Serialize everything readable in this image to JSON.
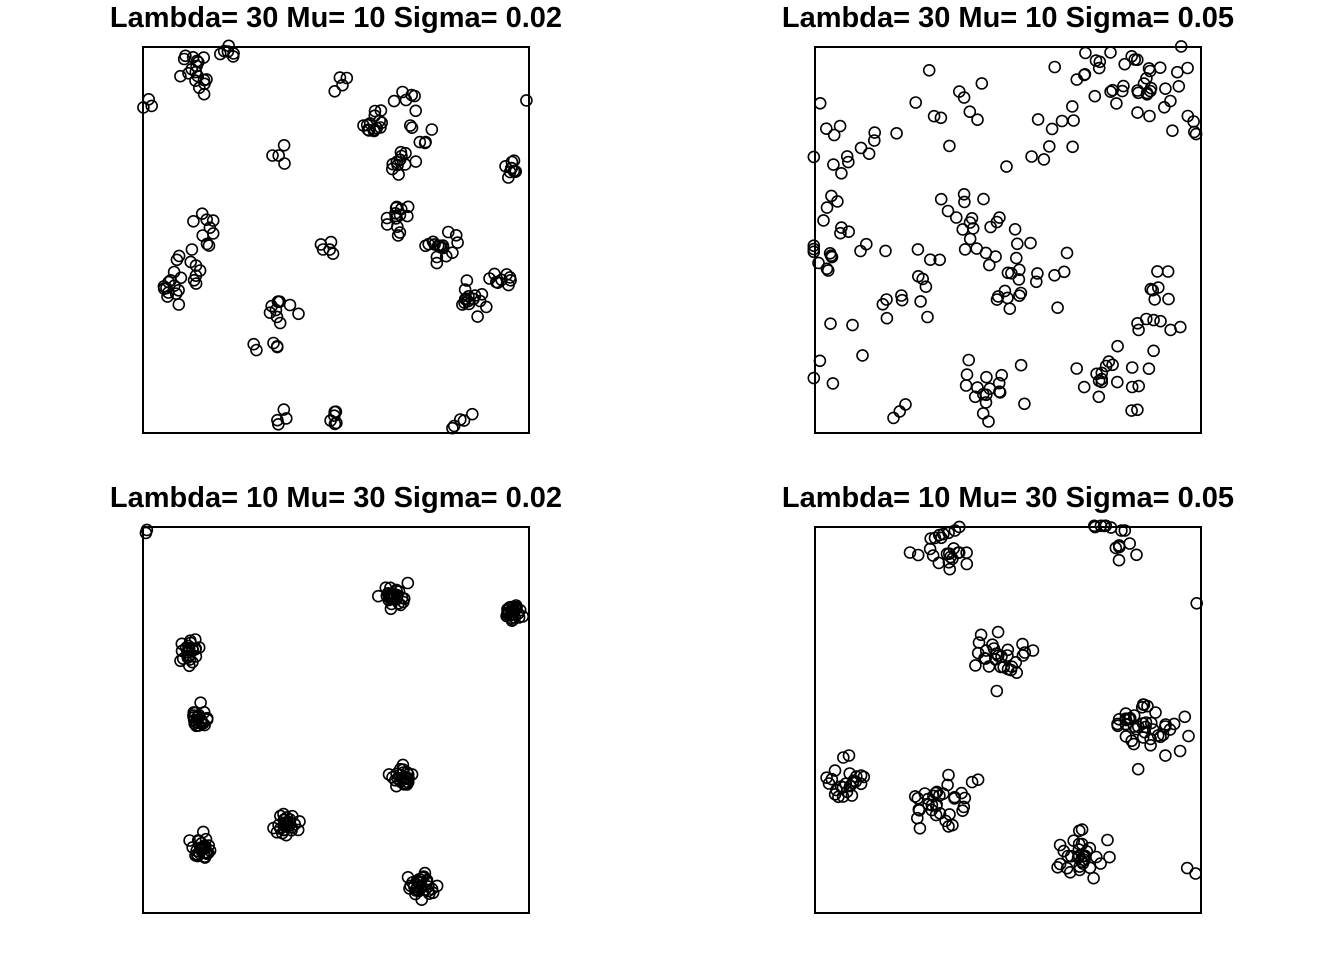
{
  "chart_data": [
    {
      "type": "scatter",
      "title": "Lambda= 30 Mu= 10 Sigma= 0.02",
      "xlim": [
        0,
        1
      ],
      "ylim": [
        0,
        1
      ],
      "axes": false,
      "grid": false,
      "clusters": [
        {
          "c": [
            0.12,
            0.96
          ],
          "s": 0.02,
          "n": 10
        },
        {
          "c": [
            0.15,
            0.9
          ],
          "s": 0.02,
          "n": 8
        },
        {
          "c": [
            0.22,
            0.99
          ],
          "s": 0.015,
          "n": 6
        },
        {
          "c": [
            0.01,
            0.84
          ],
          "s": 0.01,
          "n": 3
        },
        {
          "c": [
            0.51,
            0.9
          ],
          "s": 0.015,
          "n": 4
        },
        {
          "c": [
            0.6,
            0.8
          ],
          "s": 0.02,
          "n": 14
        },
        {
          "c": [
            0.68,
            0.88
          ],
          "s": 0.02,
          "n": 6
        },
        {
          "c": [
            0.72,
            0.78
          ],
          "s": 0.02,
          "n": 7
        },
        {
          "c": [
            0.66,
            0.7
          ],
          "s": 0.02,
          "n": 10
        },
        {
          "c": [
            0.96,
            0.69
          ],
          "s": 0.015,
          "n": 10
        },
        {
          "c": [
            0.36,
            0.73
          ],
          "s": 0.012,
          "n": 4
        },
        {
          "c": [
            0.66,
            0.56
          ],
          "s": 0.02,
          "n": 14
        },
        {
          "c": [
            0.78,
            0.48
          ],
          "s": 0.02,
          "n": 16
        },
        {
          "c": [
            0.48,
            0.47
          ],
          "s": 0.012,
          "n": 5
        },
        {
          "c": [
            0.93,
            0.4
          ],
          "s": 0.02,
          "n": 10
        },
        {
          "c": [
            0.85,
            0.34
          ],
          "s": 0.02,
          "n": 14
        },
        {
          "c": [
            0.16,
            0.54
          ],
          "s": 0.02,
          "n": 9
        },
        {
          "c": [
            0.12,
            0.45
          ],
          "s": 0.02,
          "n": 10
        },
        {
          "c": [
            0.06,
            0.37
          ],
          "s": 0.02,
          "n": 12
        },
        {
          "c": [
            0.36,
            0.31
          ],
          "s": 0.02,
          "n": 10
        },
        {
          "c": [
            0.32,
            0.23
          ],
          "s": 0.015,
          "n": 5
        },
        {
          "c": [
            0.36,
            0.03
          ],
          "s": 0.012,
          "n": 4
        },
        {
          "c": [
            0.49,
            0.03
          ],
          "s": 0.012,
          "n": 6
        },
        {
          "c": [
            0.82,
            0.04
          ],
          "s": 0.015,
          "n": 5
        },
        {
          "c": [
            0.99,
            0.86
          ],
          "s": 0.003,
          "n": 1
        }
      ]
    },
    {
      "type": "scatter",
      "title": "Lambda= 30 Mu= 10 Sigma= 0.05",
      "xlim": [
        0,
        1
      ],
      "ylim": [
        0,
        1
      ],
      "axes": false,
      "grid": false,
      "clusters": [
        {
          "c": [
            0.85,
            0.92
          ],
          "s": 0.05,
          "n": 30
        },
        {
          "c": [
            0.7,
            0.9
          ],
          "s": 0.05,
          "n": 12
        },
        {
          "c": [
            0.38,
            0.86
          ],
          "s": 0.05,
          "n": 10
        },
        {
          "c": [
            0.1,
            0.74
          ],
          "s": 0.05,
          "n": 14
        },
        {
          "c": [
            0.05,
            0.5
          ],
          "s": 0.05,
          "n": 18
        },
        {
          "c": [
            0.4,
            0.55
          ],
          "s": 0.05,
          "n": 18
        },
        {
          "c": [
            0.53,
            0.4
          ],
          "s": 0.05,
          "n": 22
        },
        {
          "c": [
            0.25,
            0.38
          ],
          "s": 0.05,
          "n": 14
        },
        {
          "c": [
            0.45,
            0.12
          ],
          "s": 0.05,
          "n": 18
        },
        {
          "c": [
            0.78,
            0.14
          ],
          "s": 0.05,
          "n": 20
        },
        {
          "c": [
            0.88,
            0.34
          ],
          "s": 0.05,
          "n": 10
        },
        {
          "c": [
            0.98,
            0.8
          ],
          "s": 0.03,
          "n": 5
        },
        {
          "c": [
            0.05,
            0.2
          ],
          "s": 0.04,
          "n": 6
        },
        {
          "c": [
            0.58,
            0.76
          ],
          "s": 0.05,
          "n": 7
        },
        {
          "c": [
            0.96,
            0.28
          ],
          "s": 0.04,
          "n": 4
        },
        {
          "c": [
            0.2,
            0.08
          ],
          "s": 0.03,
          "n": 3
        }
      ]
    },
    {
      "type": "scatter",
      "title": "Lambda= 10 Mu= 30 Sigma= 0.02",
      "xlim": [
        0,
        1
      ],
      "ylim": [
        0,
        1
      ],
      "axes": false,
      "grid": false,
      "clusters": [
        {
          "c": [
            0.65,
            0.82
          ],
          "s": 0.015,
          "n": 30
        },
        {
          "c": [
            0.96,
            0.78
          ],
          "s": 0.012,
          "n": 30
        },
        {
          "c": [
            0.12,
            0.68
          ],
          "s": 0.015,
          "n": 24
        },
        {
          "c": [
            0.15,
            0.5
          ],
          "s": 0.015,
          "n": 24
        },
        {
          "c": [
            0.67,
            0.35
          ],
          "s": 0.015,
          "n": 26
        },
        {
          "c": [
            0.37,
            0.23
          ],
          "s": 0.015,
          "n": 28
        },
        {
          "c": [
            0.15,
            0.17
          ],
          "s": 0.015,
          "n": 28
        },
        {
          "c": [
            0.72,
            0.07
          ],
          "s": 0.015,
          "n": 30
        },
        {
          "c": [
            0.01,
            0.99
          ],
          "s": 0.004,
          "n": 2
        }
      ]
    },
    {
      "type": "scatter",
      "title": "Lambda= 10 Mu= 30 Sigma= 0.05",
      "xlim": [
        0,
        1
      ],
      "ylim": [
        0,
        1
      ],
      "axes": false,
      "grid": false,
      "clusters": [
        {
          "c": [
            0.34,
            0.95
          ],
          "s": 0.035,
          "n": 24
        },
        {
          "c": [
            0.77,
            0.97
          ],
          "s": 0.03,
          "n": 14
        },
        {
          "c": [
            0.48,
            0.66
          ],
          "s": 0.035,
          "n": 30
        },
        {
          "c": [
            0.86,
            0.48
          ],
          "s": 0.04,
          "n": 44
        },
        {
          "c": [
            0.07,
            0.34
          ],
          "s": 0.035,
          "n": 24
        },
        {
          "c": [
            0.32,
            0.28
          ],
          "s": 0.035,
          "n": 34
        },
        {
          "c": [
            0.7,
            0.15
          ],
          "s": 0.035,
          "n": 32
        },
        {
          "c": [
            0.99,
            0.8
          ],
          "s": 0.003,
          "n": 1
        },
        {
          "c": [
            0.98,
            0.1
          ],
          "s": 0.01,
          "n": 2
        }
      ]
    }
  ]
}
